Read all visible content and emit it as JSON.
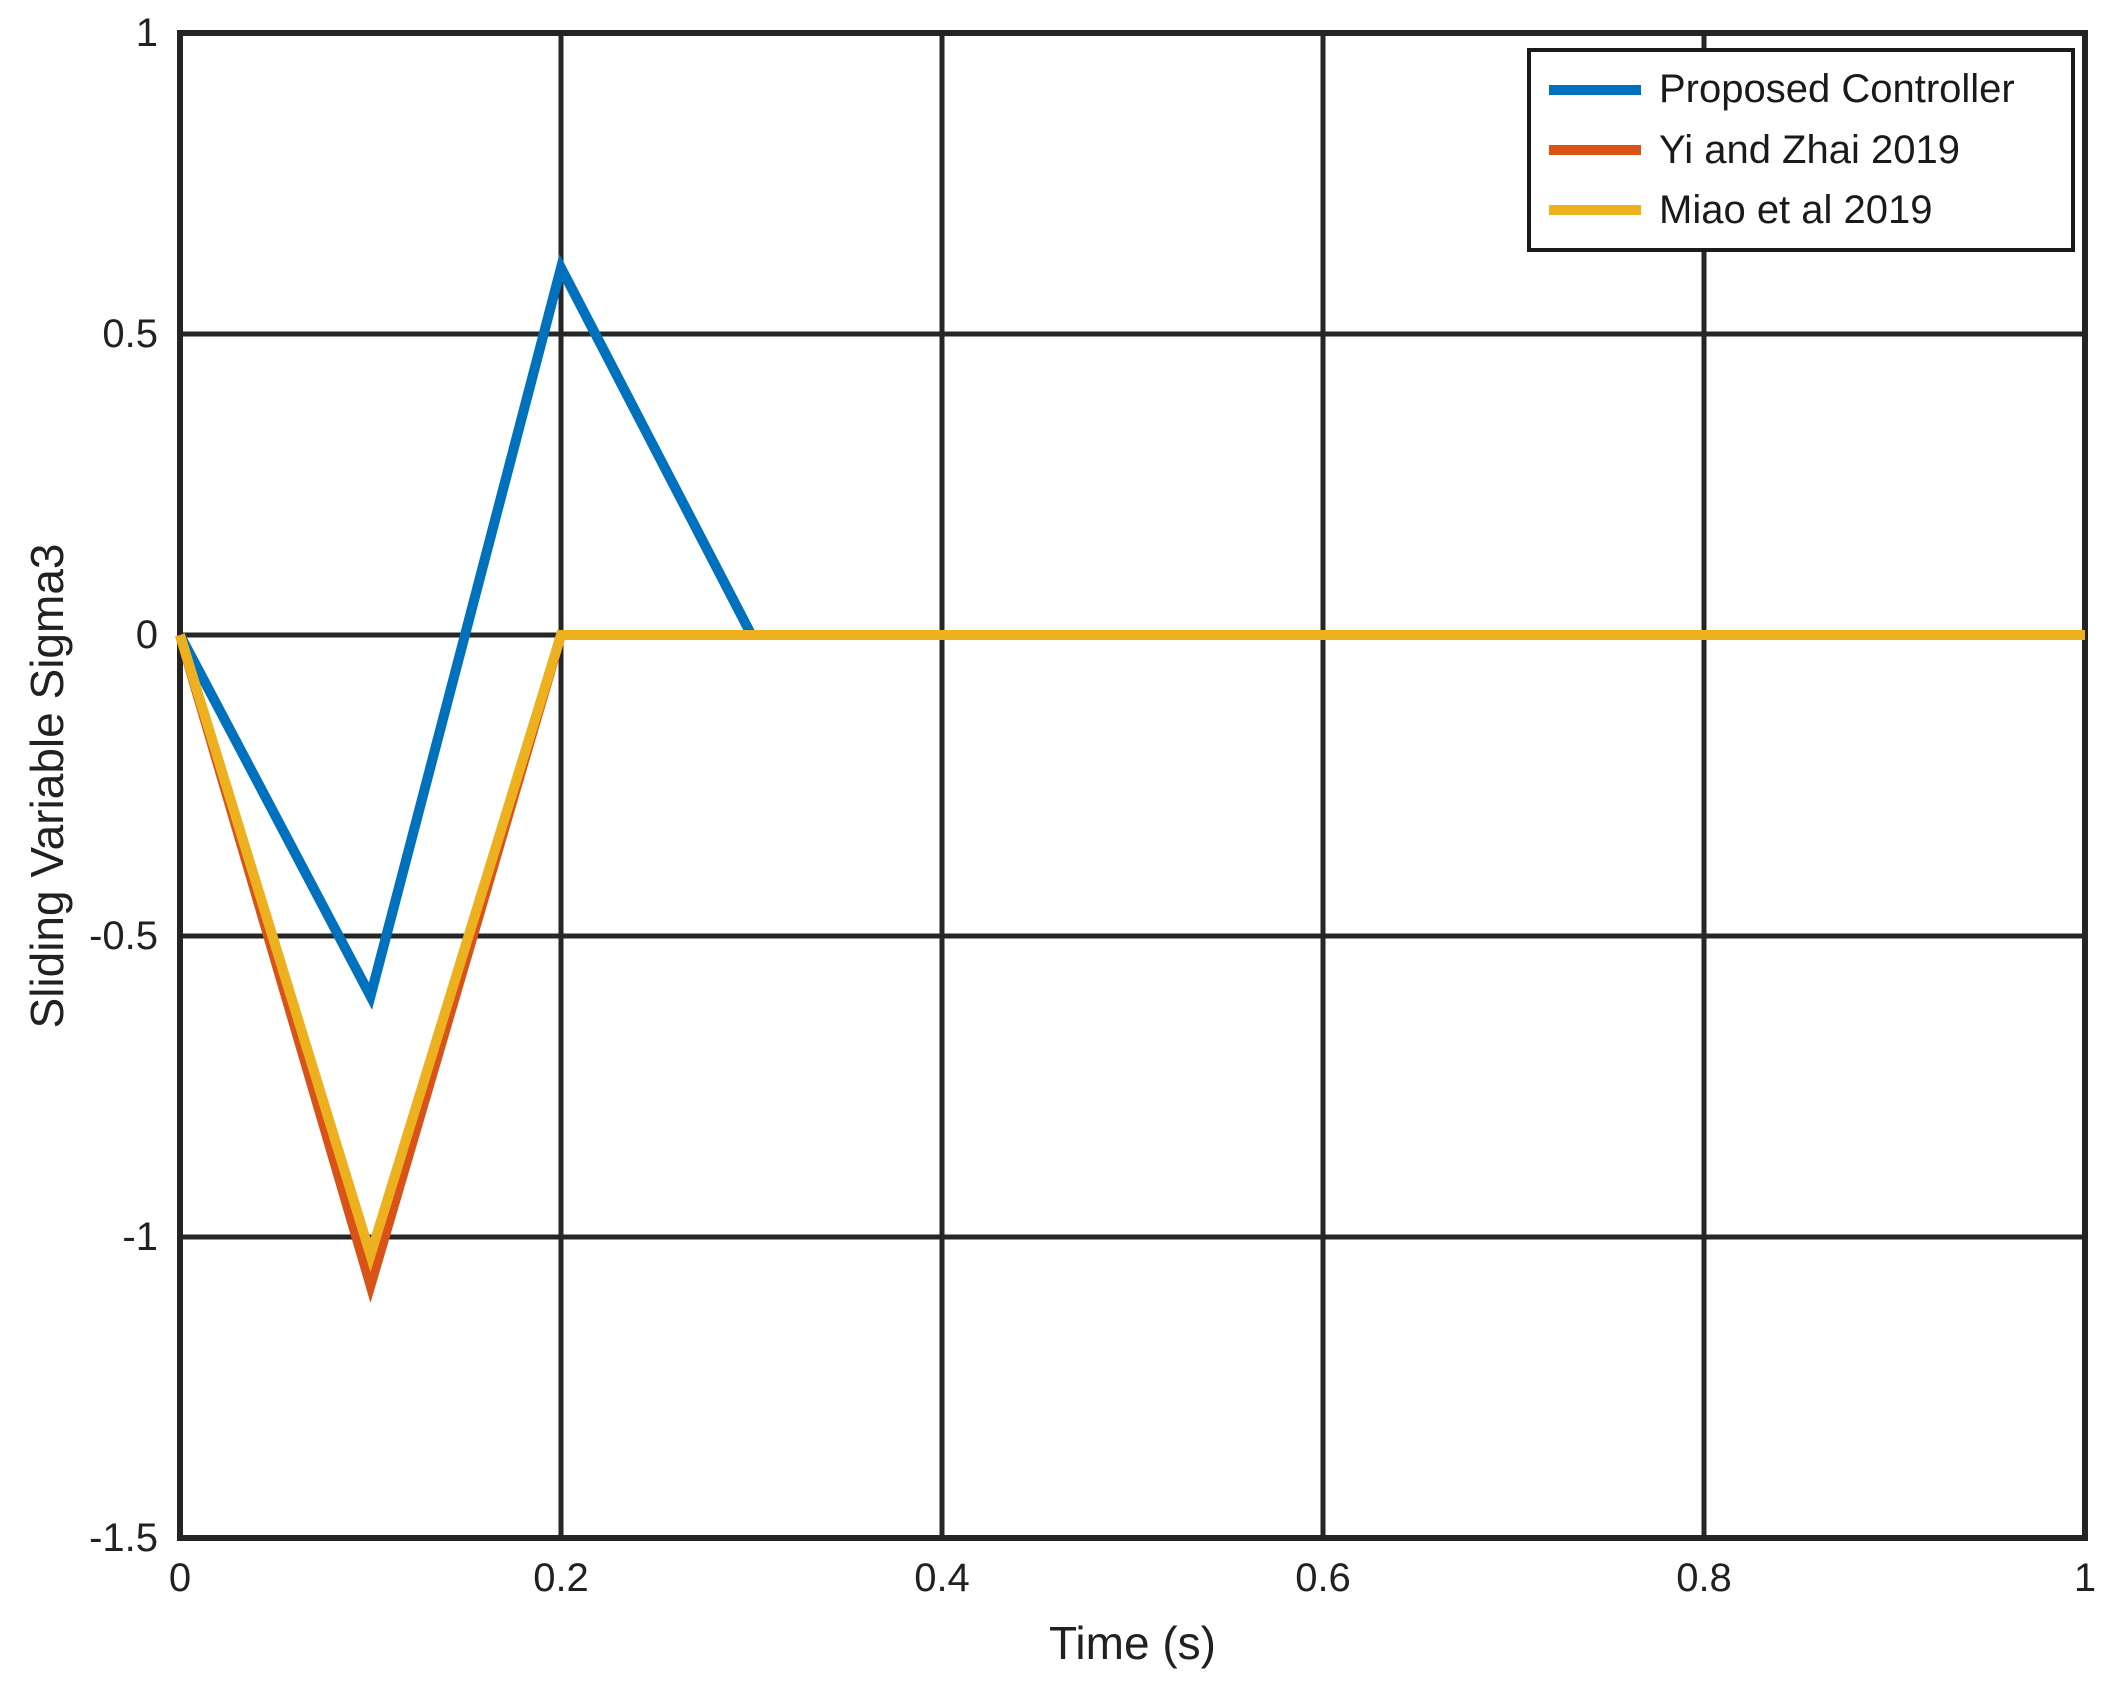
{
  "figure": {
    "background": "#ffffff"
  },
  "colors": {
    "axis_box": "#242424",
    "grid": "#262626",
    "text": "#212121",
    "legend_border": "#1a1a1a"
  },
  "chart_data": {
    "type": "line",
    "title": "",
    "xlabel": "Time (s)",
    "ylabel": "Sliding Variable Sigma3",
    "xlim": [
      0,
      1
    ],
    "ylim": [
      -1.5,
      1
    ],
    "xticks": [
      0,
      0.2,
      0.4,
      0.6,
      0.8,
      1
    ],
    "xtick_labels": [
      "0",
      "0.2",
      "0.4",
      "0.6",
      "0.8",
      "1"
    ],
    "yticks": [
      -1.5,
      -1,
      -0.5,
      0,
      0.5,
      1
    ],
    "ytick_labels": [
      "-1.5",
      "-1",
      "-0.5",
      "0",
      "0.5",
      "1"
    ],
    "grid": true,
    "box": true,
    "legend_position": "northeast",
    "line_width": 10,
    "series": [
      {
        "name": "Proposed Controller",
        "color": "#0072BD",
        "points": [
          [
            0,
            0
          ],
          [
            0.1,
            -0.6
          ],
          [
            0.2,
            0.61
          ],
          [
            0.3,
            0
          ],
          [
            1,
            0
          ]
        ]
      },
      {
        "name": "Yi and Zhai 2019",
        "color": "#D95319",
        "points": [
          [
            0,
            0
          ],
          [
            0.1,
            -1.08
          ],
          [
            0.2,
            0
          ],
          [
            1,
            0
          ]
        ]
      },
      {
        "name": "Miao et al 2019",
        "color": "#EDB120",
        "points": [
          [
            0,
            0
          ],
          [
            0.1,
            -1.03
          ],
          [
            0.2,
            0
          ],
          [
            1,
            0
          ]
        ]
      }
    ]
  }
}
